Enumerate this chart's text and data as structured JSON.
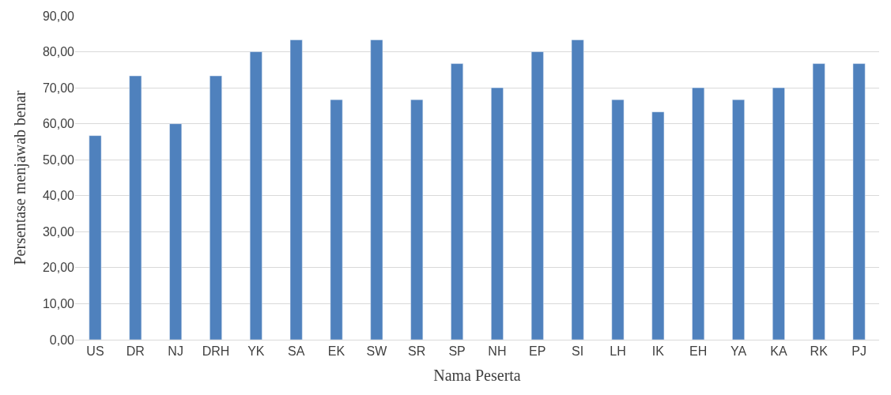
{
  "chart_data": {
    "type": "bar",
    "xlabel": "Nama Peserta",
    "ylabel": "Persentase menjawab benar",
    "categories": [
      "US",
      "DR",
      "NJ",
      "DRH",
      "YK",
      "SA",
      "EK",
      "SW",
      "SR",
      "SP",
      "NH",
      "EP",
      "SI",
      "LH",
      "IK",
      "EH",
      "YA",
      "KA",
      "RK",
      "PJ"
    ],
    "values": [
      56.7,
      73.3,
      60.0,
      73.3,
      80.0,
      83.3,
      66.7,
      83.3,
      66.7,
      76.7,
      70.0,
      80.0,
      83.3,
      66.7,
      63.3,
      70.0,
      66.7,
      70.0,
      76.7,
      76.7
    ],
    "color": "#4f81bd",
    "ylim": [
      0,
      90
    ],
    "yticks": [
      {
        "value": 0,
        "label": "0,00"
      },
      {
        "value": 10,
        "label": "10,00"
      },
      {
        "value": 20,
        "label": "20,00"
      },
      {
        "value": 30,
        "label": "30,00"
      },
      {
        "value": 40,
        "label": "40,00"
      },
      {
        "value": 50,
        "label": "50,00"
      },
      {
        "value": 60,
        "label": "60,00"
      },
      {
        "value": 70,
        "label": "70,00"
      },
      {
        "value": 80,
        "label": "80,00"
      },
      {
        "value": 90,
        "label": "90,00"
      }
    ],
    "grid": "y",
    "legend": false
  }
}
